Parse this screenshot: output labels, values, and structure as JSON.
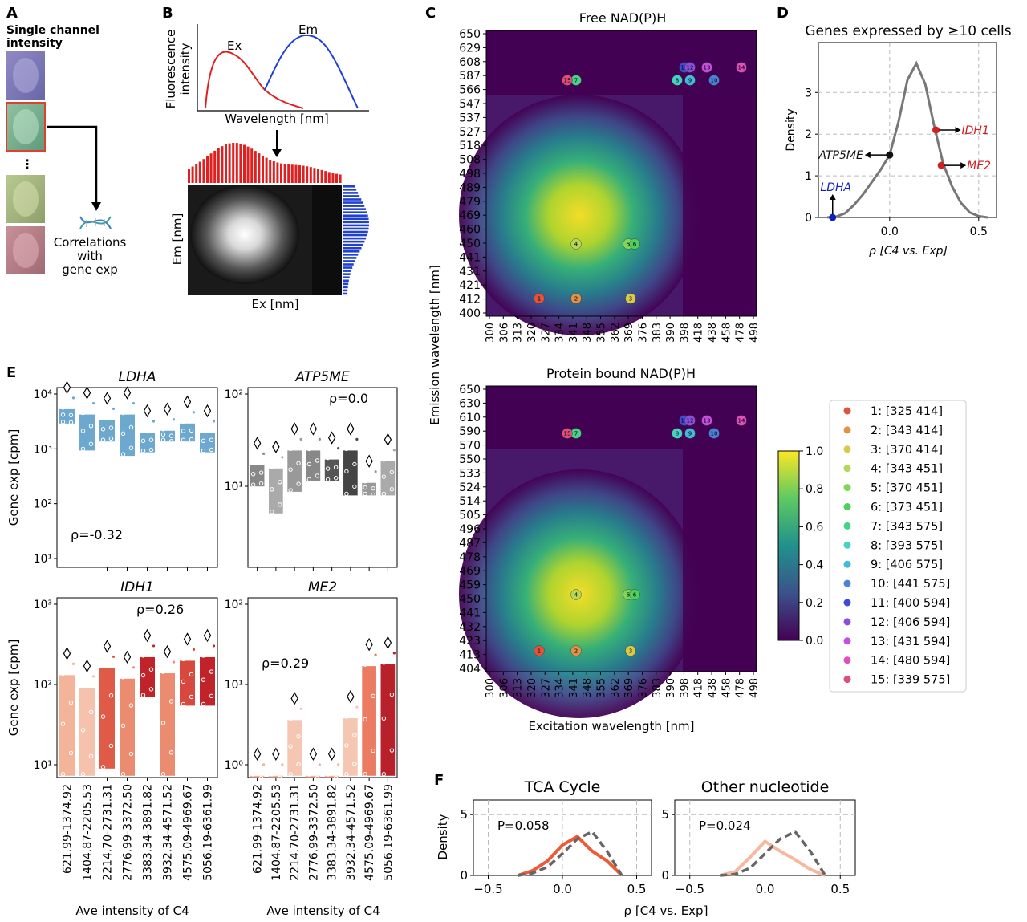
{
  "panel_labels": {
    "A": "A",
    "B": "B",
    "C": "C",
    "D": "D",
    "E": "E",
    "F": "F"
  },
  "panelA": {
    "title_line1": "Single channel",
    "title_line2": "intensity",
    "ellipsis": "⋮",
    "corr1": "Correlations",
    "corr2": "with",
    "corr3": "gene exp"
  },
  "panelB": {
    "ylabel1": "Fluorescence",
    "ylabel2": "intensity",
    "xlabel": "Wavelength [nm]",
    "ex": "Ex",
    "em": "Em",
    "img_ylabel": "Em [nm]",
    "img_xlabel": "Ex [nm]"
  },
  "panelC": {
    "title_top": "Free NAD(P)H",
    "title_bottom": "Protein bound NAD(P)H",
    "ylabel": "Emission wavelength [nm]",
    "xlabel": "Excitation wavelength [nm]",
    "xticks": [
      "300",
      "306",
      "313",
      "320",
      "327",
      "334",
      "341",
      "348",
      "355",
      "362",
      "369",
      "376",
      "383",
      "390",
      "398",
      "418",
      "438",
      "458",
      "478",
      "498"
    ],
    "yticks_top": [
      "650",
      "629",
      "608",
      "587",
      "566",
      "547",
      "537",
      "527",
      "518",
      "508",
      "498",
      "489",
      "479",
      "469",
      "460",
      "450",
      "441",
      "431",
      "421",
      "412",
      "400"
    ],
    "yticks_bottom": [
      "650",
      "630",
      "610",
      "590",
      "570",
      "550",
      "533",
      "524",
      "514",
      "505",
      "496",
      "487",
      "478",
      "469",
      "459",
      "450",
      "441",
      "432",
      "423",
      "413",
      "404"
    ],
    "colorbar_ticks": [
      "1.0",
      "0.8",
      "0.6",
      "0.4",
      "0.2",
      "0.0"
    ],
    "legend": [
      {
        "label": "1: [325 414]",
        "color": "#e0523c"
      },
      {
        "label": "2: [343 414]",
        "color": "#e29146"
      },
      {
        "label": "3: [370 414]",
        "color": "#d9c949"
      },
      {
        "label": "4: [343 451]",
        "color": "#b6d85a"
      },
      {
        "label": "5: [370 451]",
        "color": "#7fd65a"
      },
      {
        "label": "6: [373 451]",
        "color": "#4fcf5c"
      },
      {
        "label": "7: [343 575]",
        "color": "#46d389"
      },
      {
        "label": "8: [393 575]",
        "color": "#47d2c3"
      },
      {
        "label": "9: [406 575]",
        "color": "#45b8e0"
      },
      {
        "label": "10: [441 575]",
        "color": "#4a82da"
      },
      {
        "label": "11: [400 594]",
        "color": "#3f4bd6"
      },
      {
        "label": "12: [406 594]",
        "color": "#8a4fd8"
      },
      {
        "label": "13: [431 594]",
        "color": "#c44fe0"
      },
      {
        "label": "14: [480 594]",
        "color": "#df4fc0"
      },
      {
        "label": "15: [339 575]",
        "color": "#dd4f7a"
      }
    ]
  },
  "panelD": {
    "title": "Genes expressed by ≥10 cells",
    "ylabel": "Density",
    "xlabel": "ρ [C4 vs. Exp]",
    "yticks": [
      "0",
      "1",
      "2",
      "3"
    ],
    "xticks": [
      "0.0",
      "0.5"
    ],
    "genes": {
      "idh1": "IDH1",
      "me2": "ME2",
      "atp5me": "ATP5ME",
      "ldha": "LDHA"
    }
  },
  "panelE": {
    "ylabel": "Gene exp [cpm]",
    "xlabel": "Ave intensity of C4",
    "categories": [
      "621.99-1374.92",
      "1404.87-2205.53",
      "2214.70-2731.31",
      "2776.99-3372.50",
      "3383.34-3891.82",
      "3932.34-4571.52",
      "4575.09-4969.67",
      "5056.19-6361.99"
    ],
    "subplots": [
      {
        "title": "LDHA",
        "rho": "ρ=-0.32",
        "yticks": [
          "10⁴",
          "10³",
          "10²",
          "10¹"
        ]
      },
      {
        "title": "ATP5ME",
        "rho": "ρ=0.0",
        "yticks": [
          "10²",
          "10¹"
        ]
      },
      {
        "title": "IDH1",
        "rho": "ρ=0.26",
        "yticks": [
          "10³",
          "10²",
          "10¹"
        ]
      },
      {
        "title": "ME2",
        "rho": "ρ=0.29",
        "yticks": [
          "10²",
          "10¹",
          "10⁰"
        ]
      }
    ]
  },
  "panelF": {
    "ylabel": "Density",
    "xlabel": "ρ [C4 vs. Exp]",
    "xticks": [
      "−0.5",
      "0.0",
      "0.5"
    ],
    "yticks": [
      "0",
      "5"
    ],
    "subplots": [
      {
        "title": "TCA Cycle",
        "p": "P=0.058"
      },
      {
        "title": "Other nucleotide",
        "p": "P=0.024"
      }
    ]
  },
  "chart_data": [
    {
      "type": "area",
      "panel": "D",
      "title": "Genes expressed by ≥10 cells",
      "xlabel": "ρ [C4 vs. Exp]",
      "ylabel": "Density",
      "xlim": [
        -0.4,
        0.6
      ],
      "ylim": [
        0,
        4.2
      ],
      "x": [
        -0.35,
        -0.3,
        -0.25,
        -0.2,
        -0.15,
        -0.1,
        -0.05,
        0,
        0.05,
        0.1,
        0.15,
        0.2,
        0.25,
        0.3,
        0.35,
        0.4,
        0.45,
        0.5,
        0.55
      ],
      "y": [
        0,
        0.02,
        0.1,
        0.3,
        0.55,
        0.85,
        1.15,
        1.5,
        2.3,
        3.3,
        3.7,
        3.2,
        2.2,
        1.3,
        0.75,
        0.35,
        0.12,
        0.03,
        0
      ],
      "points": [
        {
          "name": "IDH1",
          "x": 0.26,
          "y": 2.1
        },
        {
          "name": "ME2",
          "x": 0.29,
          "y": 1.25
        },
        {
          "name": "ATP5ME",
          "x": 0,
          "y": 1.5
        },
        {
          "name": "LDHA",
          "x": -0.32,
          "y": 0
        }
      ]
    },
    {
      "type": "line",
      "panel": "F1",
      "title": "TCA Cycle",
      "xlabel": "ρ [C4 vs. Exp]",
      "ylabel": "Density",
      "xlim": [
        -0.6,
        0.6
      ],
      "ylim": [
        0,
        6.2
      ],
      "x": [
        -0.3,
        -0.2,
        -0.1,
        0,
        0.1,
        0.2,
        0.3,
        0.4
      ],
      "series": [
        {
          "values": [
            0,
            0.4,
            1.2,
            2.5,
            3.2,
            2.0,
            1.2,
            0
          ]
        },
        {
          "values": [
            0,
            0.2,
            0.7,
            1.8,
            3.0,
            3.6,
            2.0,
            0
          ]
        }
      ]
    },
    {
      "type": "line",
      "panel": "F2",
      "title": "Other nucleotide",
      "xlabel": "ρ [C4 vs. Exp]",
      "ylabel": "Density",
      "xlim": [
        -0.6,
        0.6
      ],
      "ylim": [
        0,
        6.2
      ],
      "x": [
        -0.3,
        -0.2,
        -0.1,
        0,
        0.1,
        0.2,
        0.3,
        0.4
      ],
      "series": [
        {
          "values": [
            0,
            0.3,
            1.5,
            2.8,
            2.0,
            1.3,
            0.5,
            0
          ]
        },
        {
          "values": [
            0,
            0.1,
            0.6,
            1.8,
            3.0,
            3.6,
            2.0,
            0
          ]
        }
      ]
    }
  ]
}
